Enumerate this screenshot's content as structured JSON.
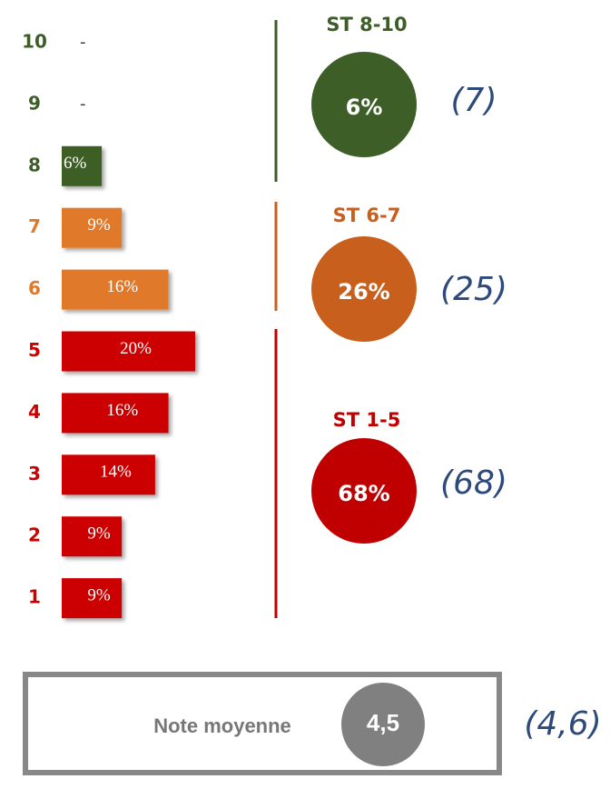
{
  "chart_data": {
    "type": "bar",
    "orientation": "horizontal",
    "categories": [
      "10",
      "9",
      "8",
      "7",
      "6",
      "5",
      "4",
      "3",
      "2",
      "1"
    ],
    "values": [
      null,
      null,
      6,
      9,
      16,
      20,
      16,
      14,
      9,
      9
    ],
    "value_labels": [
      "-",
      "-",
      "6%",
      "9%",
      "16%",
      "20%",
      "16%",
      "14%",
      "9%",
      "9%"
    ],
    "colors": [
      "#3d5e27",
      "#3d5e27",
      "#3d5e27",
      "#e07a2a",
      "#e07a2a",
      "#cc0000",
      "#cc0000",
      "#cc0000",
      "#cc0000",
      "#cc0000"
    ],
    "groups": [
      {
        "label": "ST 8-10",
        "value": 6,
        "value_label": "6%",
        "note": "(7)",
        "color": "#3d5e27"
      },
      {
        "label": "ST 6-7",
        "value": 26,
        "value_label": "26%",
        "note": "(25)",
        "color": "#c85f1c"
      },
      {
        "label": "ST 1-5",
        "value": 68,
        "value_label": "68%",
        "note": "(68)",
        "color": "#c00000"
      }
    ],
    "average": {
      "label": "Note moyenne",
      "value": 4.5,
      "value_label": "4,5",
      "note": "(4,6)",
      "color": "#808080"
    }
  }
}
